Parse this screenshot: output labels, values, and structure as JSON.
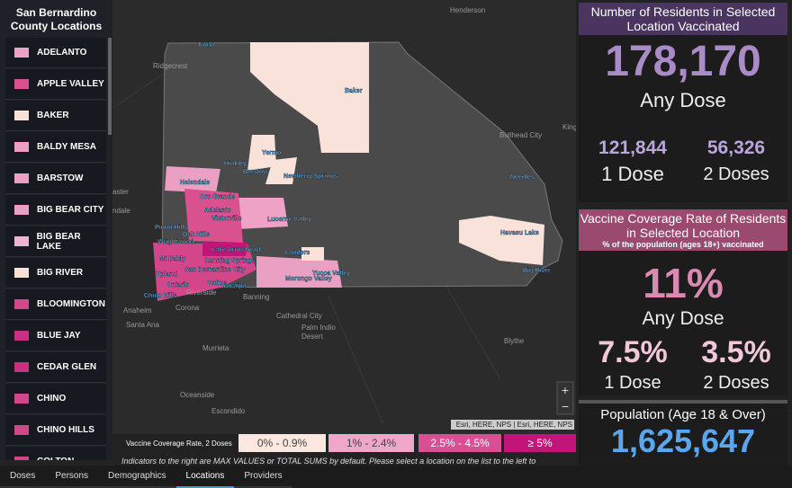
{
  "sidebar": {
    "title": "San Bernardino County Locations",
    "items": [
      {
        "name": "ADELANTO",
        "color": "#eea3c6"
      },
      {
        "name": "APPLE VALLEY",
        "color": "#d9518f"
      },
      {
        "name": "BAKER",
        "color": "#f8e2d9"
      },
      {
        "name": "BALDY MESA",
        "color": "#eaa0c2"
      },
      {
        "name": "BARSTOW",
        "color": "#eaa0c2"
      },
      {
        "name": "BIG BEAR CITY",
        "color": "#e9a0c4"
      },
      {
        "name": "BIG BEAR LAKE",
        "color": "#efb4cf"
      },
      {
        "name": "BIG RIVER",
        "color": "#f8e2d9"
      },
      {
        "name": "BLOOMINGTON",
        "color": "#d4468a"
      },
      {
        "name": "BLUE JAY",
        "color": "#c9307f"
      },
      {
        "name": "CEDAR GLEN",
        "color": "#c9307f"
      },
      {
        "name": "CHINO",
        "color": "#d4468a"
      },
      {
        "name": "CHINO HILLS",
        "color": "#d4468a"
      },
      {
        "name": "COLTON",
        "color": "#d4468a"
      }
    ]
  },
  "map": {
    "labels": [
      "Trona",
      "Ridgecrest",
      "Henderson",
      "Baker",
      "Bullhead City",
      "Kingman",
      "Yermo",
      "Hinkley",
      "Barstow",
      "Newberry Springs",
      "Helendale",
      "Oro Grande",
      "Adelanto",
      "Victorville",
      "Lucerne Valley",
      "Pinon Hills",
      "Oak Hills",
      "Wrightwood",
      "Lake Arrowhead",
      "Mt Baldy",
      "Running Springs",
      "San Bernardino City",
      "Upland",
      "Ontario",
      "Chino Hills",
      "Colton",
      "Yucaipa",
      "Landers",
      "Yucca Valley",
      "Morongo Valley",
      "Needles",
      "Havasu Lake",
      "Big River",
      "Anaheim",
      "Corona",
      "Santa Ana",
      "Riverside",
      "Banning",
      "Cathedral City",
      "Palm Indio",
      "Desert",
      "Murrieta",
      "Oceanside",
      "Escondido",
      "Blythe",
      "aster",
      "ndale"
    ],
    "attribution": "Esri, HERE, NPS | Esri, HERE, NPS",
    "zoom_in": "+",
    "zoom_out": "−",
    "legend": {
      "title": "Vaccine Coverage Rate, 2 Doses",
      "items": [
        {
          "label": "0% - 0.9%",
          "color": "#fce8e0"
        },
        {
          "label": "1% - 2.4%",
          "color": "#f0a6c8"
        },
        {
          "label": "2.5% - 4.5%",
          "color": "#d94f94"
        },
        {
          "label": "≥ 5%",
          "color": "#c2157a"
        }
      ]
    },
    "note": "Indicators to the right are MAX VALUES or TOTAL SUMS by default. Please select a location on the list to the left to"
  },
  "tabs": [
    "Doses",
    "Persons",
    "Demographics",
    "Locations",
    "Providers"
  ],
  "vaccinated": {
    "title": "Number of Residents in Selected Location Vaccinated",
    "any_dose": "178,170",
    "any_dose_label": "Any Dose",
    "one_dose": "121,844",
    "one_dose_label": "1 Dose",
    "two_doses": "56,326",
    "two_doses_label": "2 Doses"
  },
  "coverage": {
    "title": "Vaccine Coverage Rate of Residents in Selected Location",
    "subtitle": "% of the population (ages 18+) vaccinated",
    "any_dose": "11%",
    "any_dose_label": "Any Dose",
    "one_dose": "7.5%",
    "one_dose_label": "1 Dose",
    "two_doses": "3.5%",
    "two_doses_label": "2 Doses"
  },
  "population": {
    "title": "Population (Age 18 & Over)",
    "value": "1,625,647"
  }
}
